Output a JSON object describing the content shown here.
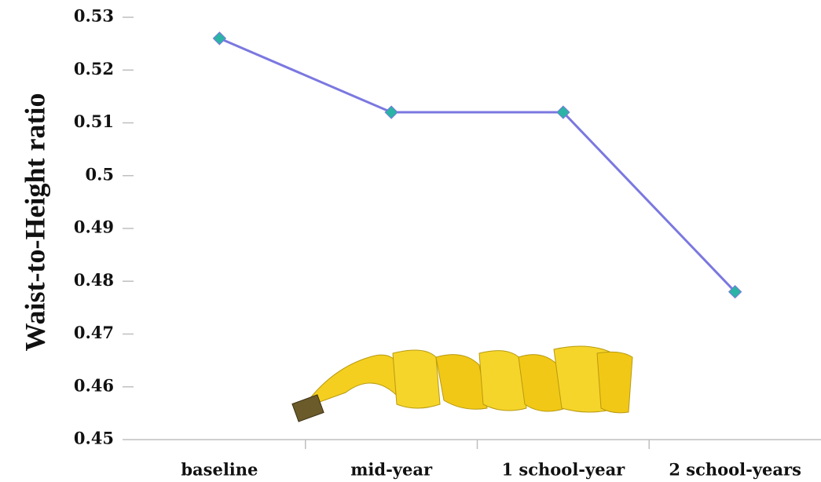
{
  "chart_data": {
    "type": "line",
    "y_label": "Waist-to-Height ratio",
    "categories": [
      "baseline",
      "mid-year",
      "1 school-year",
      "2 school-years"
    ],
    "series": [
      {
        "name": "Waist-to-Height ratio",
        "color": "#7b78e0",
        "marker_color": "#2bb3a6",
        "values": [
          0.526,
          0.512,
          0.512,
          0.478
        ]
      }
    ],
    "ylim": [
      0.45,
      0.53
    ],
    "yticks": [
      0.45,
      0.46,
      0.47,
      0.48,
      0.49,
      0.5,
      0.51,
      0.52,
      0.53
    ],
    "grid": false
  }
}
